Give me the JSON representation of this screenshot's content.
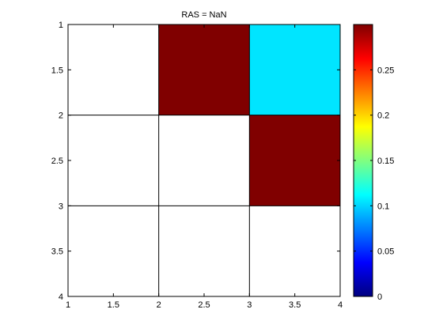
{
  "chart_data": {
    "type": "heatmap",
    "title": "RAS = NaN",
    "xlabel": "",
    "ylabel": "",
    "xlim": [
      1,
      4
    ],
    "ylim": [
      1,
      4
    ],
    "y_reversed": true,
    "x_ticks": [
      "1",
      "1.5",
      "2",
      "2.5",
      "3",
      "3.5",
      "4"
    ],
    "y_ticks": [
      "1",
      "1.5",
      "2",
      "2.5",
      "3",
      "3.5",
      "4"
    ],
    "x_tick_values": [
      1,
      1.5,
      2,
      2.5,
      3,
      3.5,
      4
    ],
    "y_tick_values": [
      1,
      1.5,
      2,
      2.5,
      3,
      3.5,
      4
    ],
    "colormap": "jet",
    "clim": [
      0,
      0.3
    ],
    "colorbar_ticks": [
      "0",
      "0.05",
      "0.1",
      "0.15",
      "0.2",
      "0.25"
    ],
    "colorbar_tick_values": [
      0,
      0.05,
      0.1,
      0.15,
      0.2,
      0.25
    ],
    "cells": [
      {
        "row": 1,
        "col": 1,
        "value": null
      },
      {
        "row": 1,
        "col": 2,
        "value": 0.3
      },
      {
        "row": 1,
        "col": 3,
        "value": 0.1
      },
      {
        "row": 2,
        "col": 1,
        "value": null
      },
      {
        "row": 2,
        "col": 2,
        "value": null
      },
      {
        "row": 2,
        "col": 3,
        "value": 0.3
      },
      {
        "row": 3,
        "col": 1,
        "value": null
      },
      {
        "row": 3,
        "col": 2,
        "value": null
      },
      {
        "row": 3,
        "col": 3,
        "value": null
      }
    ],
    "colors": {
      "high": "#800000",
      "cyan": "#00e5ff",
      "empty": "#ffffff"
    }
  }
}
